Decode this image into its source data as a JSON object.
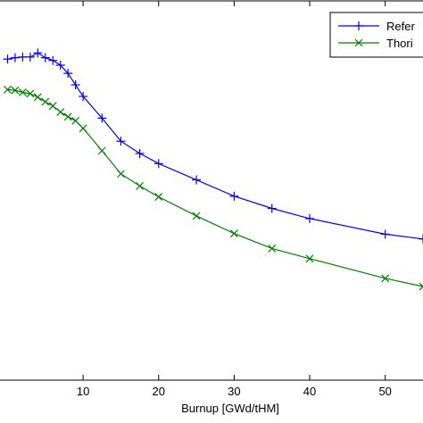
{
  "chart_data": {
    "type": "line",
    "title": "",
    "xlabel": "Burnup [GWd/tHM]",
    "ylabel": "",
    "xlim": [
      -1,
      55
    ],
    "ylim": [
      0.84,
      1.4
    ],
    "xticks": [
      10,
      20,
      30,
      40,
      50
    ],
    "grid": false,
    "legend_position": "top-right",
    "series": [
      {
        "name": "Refer",
        "color": "#0000ff",
        "marker": "plus",
        "x": [
          0,
          1,
          2,
          3,
          4,
          5,
          6,
          7,
          8,
          9,
          10,
          12.5,
          15,
          17.5,
          20,
          25,
          30,
          35,
          40,
          50,
          55
        ],
        "y": [
          1.313,
          1.315,
          1.316,
          1.316,
          1.322,
          1.315,
          1.311,
          1.304,
          1.292,
          1.275,
          1.258,
          1.226,
          1.192,
          1.174,
          1.159,
          1.135,
          1.111,
          1.093,
          1.078,
          1.055,
          1.048
        ]
      },
      {
        "name": "Thori",
        "color": "#008000",
        "marker": "x",
        "x": [
          0,
          1,
          2,
          3,
          4,
          5,
          6,
          7,
          8,
          9,
          10,
          12.5,
          15,
          17.5,
          20,
          25,
          30,
          35,
          40,
          50,
          55
        ],
        "y": [
          1.268,
          1.267,
          1.264,
          1.262,
          1.257,
          1.25,
          1.244,
          1.235,
          1.228,
          1.222,
          1.211,
          1.178,
          1.144,
          1.126,
          1.11,
          1.082,
          1.056,
          1.034,
          1.019,
          0.99,
          0.978
        ]
      }
    ]
  }
}
